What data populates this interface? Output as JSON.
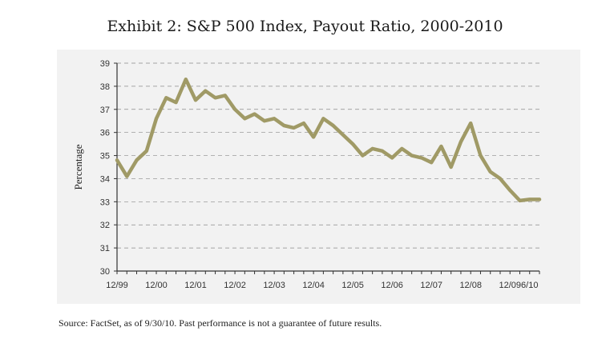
{
  "title": "Exhibit 2: S&P 500 Index, Payout Ratio, 2000-2010",
  "source": "Source: FactSet, as of 9/30/10.  Past performance is not a guarantee of future results.",
  "colors": {
    "line": "#a09a66",
    "panel_background": "#f2f2f2",
    "gridline": "#8a8a8a",
    "axis": "#333333"
  },
  "chart_data": {
    "type": "line",
    "ylabel": "Percentage",
    "xlabel": "",
    "ylim": [
      30,
      39
    ],
    "yticks": [
      30,
      31,
      32,
      33,
      34,
      35,
      36,
      37,
      38,
      39
    ],
    "grid": "horizontal-dashed",
    "xlim": [
      0,
      43
    ],
    "xticks": [
      {
        "label": "12/99",
        "q": 0
      },
      {
        "label": "12/00",
        "q": 4
      },
      {
        "label": "12/01",
        "q": 8
      },
      {
        "label": "12/02",
        "q": 12
      },
      {
        "label": "12/03",
        "q": 16
      },
      {
        "label": "12/04",
        "q": 20
      },
      {
        "label": "12/05",
        "q": 24
      },
      {
        "label": "12/06",
        "q": 28
      },
      {
        "label": "12/07",
        "q": 32
      },
      {
        "label": "12/08",
        "q": 36
      },
      {
        "label": "12/09",
        "q": 40
      },
      {
        "label": "6/10",
        "q": 42
      }
    ],
    "series": [
      {
        "name": "",
        "x": [
          0,
          1,
          2,
          3,
          4,
          5,
          6,
          7,
          8,
          9,
          10,
          11,
          12,
          13,
          14,
          15,
          16,
          17,
          18,
          19,
          20,
          21,
          22,
          23,
          24,
          25,
          26,
          27,
          28,
          29,
          30,
          31,
          32,
          33,
          34,
          35,
          36,
          37,
          38,
          39,
          40,
          41,
          42,
          43
        ],
        "values": [
          34.8,
          34.1,
          34.8,
          35.2,
          36.6,
          37.5,
          37.3,
          38.3,
          37.4,
          37.8,
          37.5,
          37.6,
          37.0,
          36.6,
          36.8,
          36.5,
          36.6,
          36.3,
          36.2,
          36.4,
          35.8,
          36.6,
          36.3,
          35.9,
          35.5,
          35.0,
          35.3,
          35.2,
          34.9,
          35.3,
          35.0,
          34.9,
          34.7,
          35.4,
          34.5,
          35.6,
          36.4,
          35.0,
          34.3,
          34.0,
          33.5,
          33.05,
          33.1,
          33.1
        ]
      }
    ]
  }
}
